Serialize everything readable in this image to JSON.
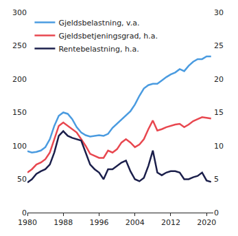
{
  "chart_data": {
    "type": "line",
    "x": [
      1980,
      1981,
      1982,
      1983,
      1984,
      1985,
      1986,
      1987,
      1988,
      1989,
      1990,
      1991,
      1992,
      1993,
      1994,
      1995,
      1996,
      1997,
      1998,
      1999,
      2000,
      2001,
      2002,
      2003,
      2004,
      2005,
      2006,
      2007,
      2008,
      2009,
      2010,
      2011,
      2012,
      2013,
      2014,
      2015,
      2016,
      2017,
      2018,
      2019,
      2020,
      2021
    ],
    "series": [
      {
        "name": "Gjeldsbelastning, v.a.",
        "color": "#4a9be0",
        "values": [
          92,
          90,
          91,
          93,
          98,
          110,
          130,
          145,
          150,
          148,
          140,
          128,
          120,
          116,
          114,
          115,
          116,
          115,
          118,
          127,
          133,
          140,
          145,
          152,
          162,
          175,
          186,
          191,
          193,
          193,
          198,
          203,
          207,
          210,
          215,
          212,
          220,
          226,
          230,
          230,
          234,
          234
        ]
      },
      {
        "name": "Gjeldsbetjeningsgrad, h.a.",
        "color": "#e8474f",
        "axis": "y2",
        "values": [
          6.0,
          6.5,
          7.2,
          7.5,
          8.0,
          9.0,
          11.0,
          13.0,
          13.5,
          13.0,
          12.5,
          12.0,
          11.0,
          10.0,
          8.8,
          8.5,
          8.2,
          8.2,
          9.3,
          9.0,
          9.5,
          10.5,
          11.0,
          10.5,
          9.8,
          10.2,
          11.0,
          12.5,
          13.8,
          12.3,
          12.5,
          12.8,
          13.0,
          13.2,
          13.3,
          12.8,
          13.2,
          13.7,
          14.0,
          14.3,
          14.2,
          14.1
        ]
      },
      {
        "name": "Rentebelastning, h.a.",
        "color": "#1b1f4b",
        "axis": "y2",
        "values": [
          4.5,
          5.0,
          5.8,
          6.2,
          6.5,
          7.2,
          9.0,
          11.5,
          12.2,
          11.5,
          11.2,
          11.0,
          10.8,
          9.0,
          7.2,
          6.5,
          6.0,
          5.0,
          6.5,
          6.5,
          7.0,
          7.5,
          7.8,
          6.2,
          5.0,
          4.7,
          5.2,
          7.0,
          9.3,
          6.0,
          5.6,
          6.0,
          6.2,
          6.2,
          6.0,
          5.0,
          5.0,
          5.3,
          5.5,
          6.0,
          4.8,
          4.6
        ]
      }
    ],
    "xlim": [
      1980,
      2021.5
    ],
    "xticks": [
      1980,
      1988,
      1996,
      2004,
      2012,
      2020
    ],
    "ylim": [
      0,
      300
    ],
    "yticks": [
      0,
      50,
      100,
      150,
      200,
      250,
      300
    ],
    "y2lim": [
      0,
      30
    ],
    "y2ticks": [
      0,
      5,
      10,
      15,
      20,
      25,
      30
    ],
    "grid": false,
    "legend": "top-left"
  }
}
